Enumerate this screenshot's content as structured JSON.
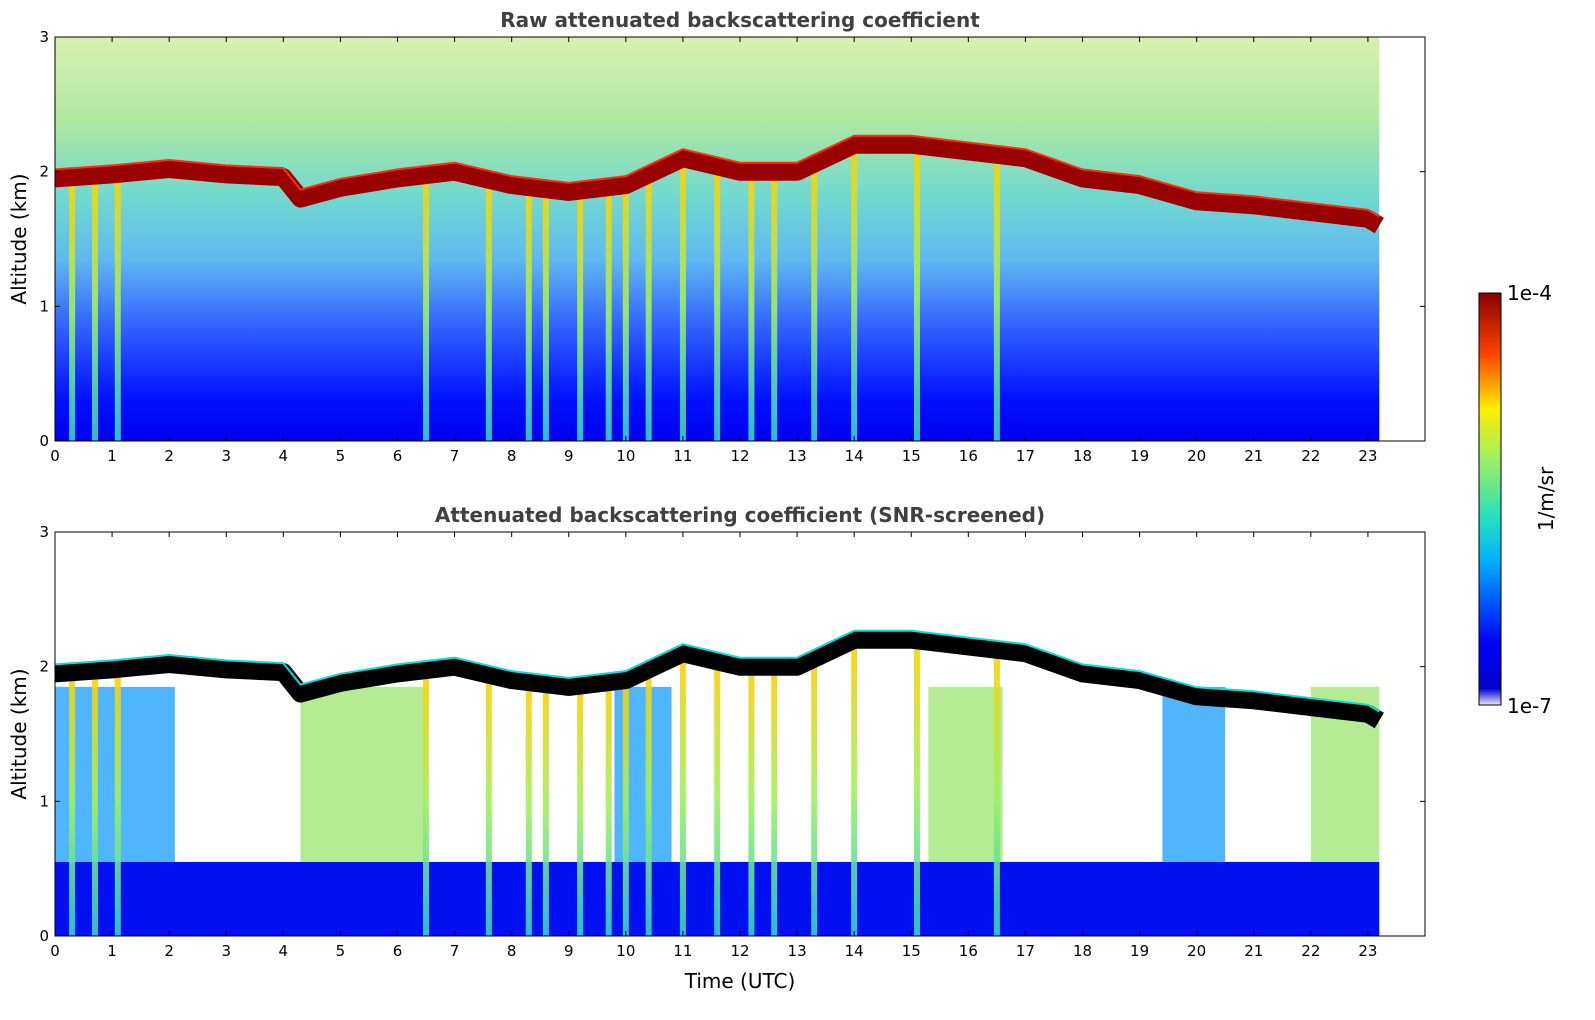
{
  "chart_data": [
    {
      "type": "heatmap",
      "title": "Raw attenuated backscattering coefficient",
      "xlabel": "",
      "ylabel": "Altitude (km)",
      "xlim": [
        0,
        24
      ],
      "ylim": [
        0,
        3
      ],
      "x_ticks": [
        "0",
        "1",
        "2",
        "3",
        "4",
        "5",
        "6",
        "7",
        "8",
        "9",
        "10",
        "11",
        "12",
        "13",
        "14",
        "15",
        "16",
        "17",
        "18",
        "19",
        "20",
        "21",
        "22",
        "23"
      ],
      "y_ticks": [
        "0",
        "1",
        "2",
        "3"
      ],
      "data_end_hour": 23.2,
      "variable": "attenuated backscatter",
      "cloud_base_km": {
        "hours": [
          0,
          1,
          2,
          3,
          4,
          4.3,
          5,
          6,
          7,
          8,
          9,
          10,
          11,
          12,
          13,
          14,
          15,
          16,
          17,
          18,
          19,
          20,
          21,
          22,
          23,
          23.2
        ],
        "values": [
          1.95,
          1.98,
          2.02,
          1.98,
          1.96,
          1.8,
          1.88,
          1.95,
          2.0,
          1.9,
          1.85,
          1.9,
          2.1,
          2.0,
          2.0,
          2.2,
          2.2,
          2.15,
          2.1,
          1.95,
          1.9,
          1.78,
          1.75,
          1.7,
          1.65,
          1.6
        ]
      },
      "precip_shafts_hours": [
        0.3,
        0.7,
        1.1,
        6.5,
        7.6,
        8.3,
        8.6,
        9.2,
        9.7,
        10.0,
        10.4,
        11.0,
        11.6,
        12.2,
        12.6,
        13.3,
        14.0,
        15.1,
        16.5
      ]
    },
    {
      "type": "heatmap",
      "title": "Attenuated backscattering coefficient (SNR-screened)",
      "xlabel": "Time (UTC)",
      "ylabel": "Altitude (km)",
      "xlim": [
        0,
        24
      ],
      "ylim": [
        0,
        3
      ],
      "x_ticks": [
        "0",
        "1",
        "2",
        "3",
        "4",
        "5",
        "6",
        "7",
        "8",
        "9",
        "10",
        "11",
        "12",
        "13",
        "14",
        "15",
        "16",
        "17",
        "18",
        "19",
        "20",
        "21",
        "22",
        "23"
      ],
      "y_ticks": [
        "0",
        "1",
        "2",
        "3"
      ],
      "data_end_hour": 23.2,
      "variable": "attenuated backscatter (SNR-screened)",
      "cloud_base_km": {
        "hours": [
          0,
          1,
          2,
          3,
          4,
          4.3,
          5,
          6,
          7,
          8,
          9,
          10,
          11,
          12,
          13,
          14,
          15,
          16,
          17,
          18,
          19,
          20,
          21,
          22,
          23,
          23.2
        ],
        "values": [
          1.95,
          1.98,
          2.02,
          1.98,
          1.96,
          1.8,
          1.88,
          1.95,
          2.0,
          1.9,
          1.85,
          1.9,
          2.1,
          2.0,
          2.0,
          2.2,
          2.2,
          2.15,
          2.1,
          1.95,
          1.9,
          1.78,
          1.75,
          1.7,
          1.65,
          1.6
        ]
      },
      "precip_shafts_hours": [
        0.3,
        0.7,
        1.1,
        6.5,
        7.6,
        8.3,
        8.6,
        9.2,
        9.7,
        10.0,
        10.4,
        11.0,
        11.6,
        12.2,
        12.6,
        13.3,
        14.0,
        15.1,
        16.5
      ]
    }
  ],
  "colorbar": {
    "label": "1/m/sr",
    "min_label": "1e-7",
    "max_label": "1e-4",
    "scale": "log",
    "colormap": "jet"
  }
}
